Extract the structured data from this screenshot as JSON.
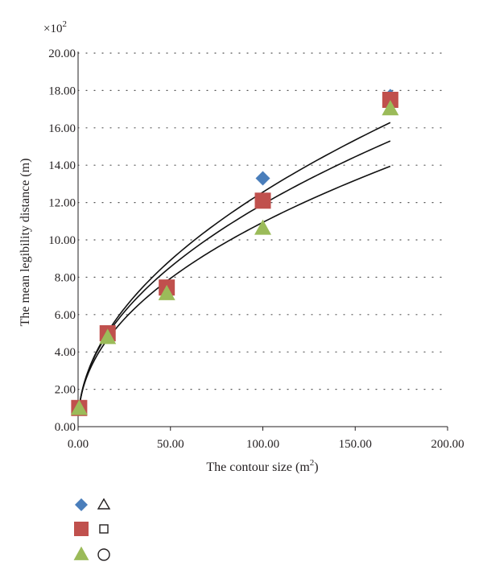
{
  "chart_data": {
    "type": "scatter",
    "multiplier_label": "×10",
    "multiplier_exponent": "2",
    "xlabel": "The contour size (m",
    "xlabel_sup": "2",
    "xlabel_end": ")",
    "ylabel": "The mean legibility distance (m)",
    "xlim": [
      0,
      200
    ],
    "ylim": [
      0,
      20
    ],
    "x_ticks": [
      "0.00",
      "50.00",
      "100.00",
      "150.00",
      "200.00"
    ],
    "y_ticks": [
      "0.00",
      "2.00",
      "4.00",
      "6.00",
      "8.00",
      "10.00",
      "12.00",
      "14.00",
      "16.00",
      "18.00",
      "20.00"
    ],
    "grid": "horizontal-dotted",
    "series": [
      {
        "marker": "diamond",
        "color": "#4a7ebb",
        "x": [
          0.6,
          16,
          48,
          100,
          169
        ],
        "y": [
          1.0,
          5.0,
          7.5,
          13.3,
          17.7
        ]
      },
      {
        "marker": "square",
        "color": "#c0504d",
        "x": [
          0.6,
          16,
          48,
          100,
          169
        ],
        "y": [
          1.0,
          5.0,
          7.45,
          12.1,
          17.5
        ]
      },
      {
        "marker": "triangle",
        "color": "#9bbb59",
        "x": [
          0.6,
          16,
          48,
          100,
          169
        ],
        "y": [
          0.95,
          4.75,
          7.1,
          10.6,
          17.0
        ]
      }
    ],
    "fits": [
      {
        "coef": 1.285,
        "exp": 0.495,
        "x_range": [
          0.6,
          169
        ]
      },
      {
        "coef": 1.32,
        "exp": 0.4776,
        "x_range": [
          0.6,
          169
        ]
      },
      {
        "coef": 1.3,
        "exp": 0.4625,
        "x_range": [
          0.6,
          169
        ]
      }
    ],
    "legend": [
      {
        "marker": "diamond",
        "color": "#4a7ebb",
        "line_symbol": "triangle"
      },
      {
        "marker": "square",
        "color": "#c0504d",
        "line_symbol": "square"
      },
      {
        "marker": "triangle",
        "color": "#9bbb59",
        "line_symbol": "circle"
      }
    ]
  }
}
